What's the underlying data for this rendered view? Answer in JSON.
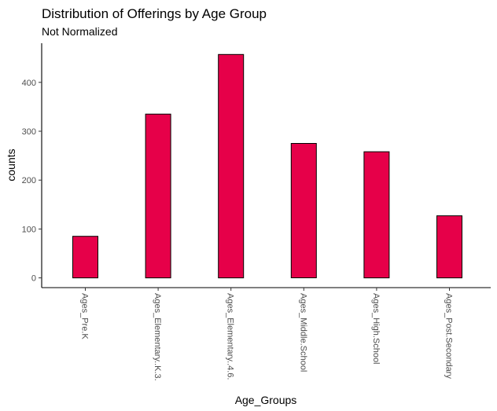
{
  "chart_data": {
    "type": "bar",
    "title": "Distribution of Offerings by Age Group",
    "subtitle": "Not Normalized",
    "xlabel": "Age_Groups",
    "ylabel": "counts",
    "categories": [
      "Ages_Pre.K",
      "Ages_Elementary..K.3.",
      "Ages_Elementary..4.6.",
      "Ages_Middle.School",
      "Ages_High.School",
      "Ages_Post.Secondary"
    ],
    "values": [
      85,
      335,
      457,
      275,
      258,
      127
    ],
    "ylim": [
      -20,
      480
    ],
    "yticks": [
      0,
      100,
      200,
      300,
      400
    ],
    "colors": {
      "bar_fill": "#e60049",
      "bar_stroke": "#000000"
    },
    "grid": false
  }
}
